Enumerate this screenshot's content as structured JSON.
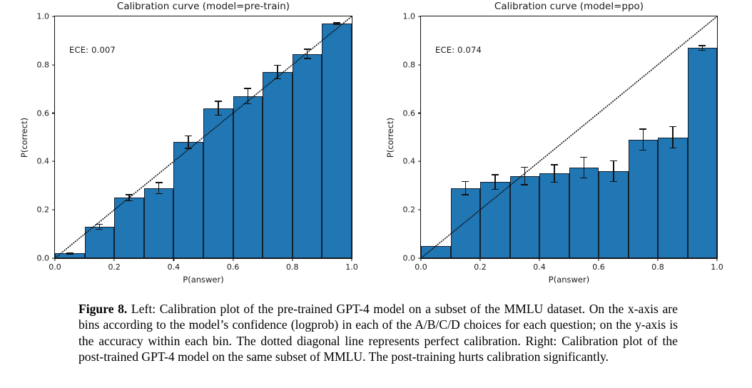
{
  "page": {
    "background": "#ffffff"
  },
  "figure_caption": {
    "label": "Figure 8.",
    "text": " Left: Calibration plot of the pre-trained GPT-4 model on a subset of the MMLU dataset. On the x-axis are bins according to the model’s confidence (logprob) in each of the A/B/C/D choices for each question; on the y-axis is the accuracy within each bin. The dotted diagonal line represents perfect calibration. Right: Calibration plot of the post-trained GPT-4 model on the same subset of MMLU. The post-training hurts calibration significantly."
  },
  "chart_data": [
    {
      "type": "bar",
      "title": "Calibration curve (model=pre-train)",
      "annotation": "ECE: 0.007",
      "xlabel": "P(answer)",
      "ylabel": "P(correct)",
      "xlim": [
        0.0,
        1.0
      ],
      "ylim": [
        0.0,
        1.0
      ],
      "grid": false,
      "legend": null,
      "x_tick_labels": [
        "0.0",
        "0.2",
        "0.4",
        "0.6",
        "0.8",
        "1.0"
      ],
      "y_tick_labels": [
        "0.0",
        "0.2",
        "0.4",
        "0.6",
        "0.8",
        "1.0"
      ],
      "bin_width": 0.1,
      "bin_left_edges": [
        0.0,
        0.1,
        0.2,
        0.3,
        0.4,
        0.5,
        0.6,
        0.7,
        0.8,
        0.9
      ],
      "values": [
        0.02,
        0.13,
        0.25,
        0.29,
        0.48,
        0.62,
        0.67,
        0.77,
        0.845,
        0.97
      ],
      "error_bars": [
        0.005,
        0.013,
        0.015,
        0.025,
        0.028,
        0.031,
        0.034,
        0.03,
        0.021,
        0.006
      ],
      "diagonal_line": "dashed y=x perfect-calibration reference",
      "bar_color": "#2077b4",
      "bar_edge_color": "#13202e",
      "line_color": "#111111"
    },
    {
      "type": "bar",
      "title": "Calibration curve (model=ppo)",
      "annotation": "ECE: 0.074",
      "xlabel": "P(answer)",
      "ylabel": "P(correct)",
      "xlim": [
        0.0,
        1.0
      ],
      "ylim": [
        0.0,
        1.0
      ],
      "grid": false,
      "legend": null,
      "x_tick_labels": [
        "0.0",
        "0.2",
        "0.4",
        "0.6",
        "0.8",
        "1.0"
      ],
      "y_tick_labels": [
        "0.0",
        "0.2",
        "0.4",
        "0.6",
        "0.8",
        "1.0"
      ],
      "bin_width": 0.1,
      "bin_left_edges": [
        0.0,
        0.1,
        0.2,
        0.3,
        0.4,
        0.5,
        0.6,
        0.7,
        0.8,
        0.9
      ],
      "values": [
        0.05,
        0.29,
        0.315,
        0.34,
        0.35,
        0.375,
        0.36,
        0.49,
        0.5,
        0.87
      ],
      "error_bars": [
        0,
        0.03,
        0.033,
        0.038,
        0.038,
        0.045,
        0.045,
        0.046,
        0.047,
        0.012
      ],
      "diagonal_line": "dashed y=x perfect-calibration reference",
      "bar_color": "#2077b4",
      "bar_edge_color": "#13202e",
      "line_color": "#111111"
    }
  ]
}
